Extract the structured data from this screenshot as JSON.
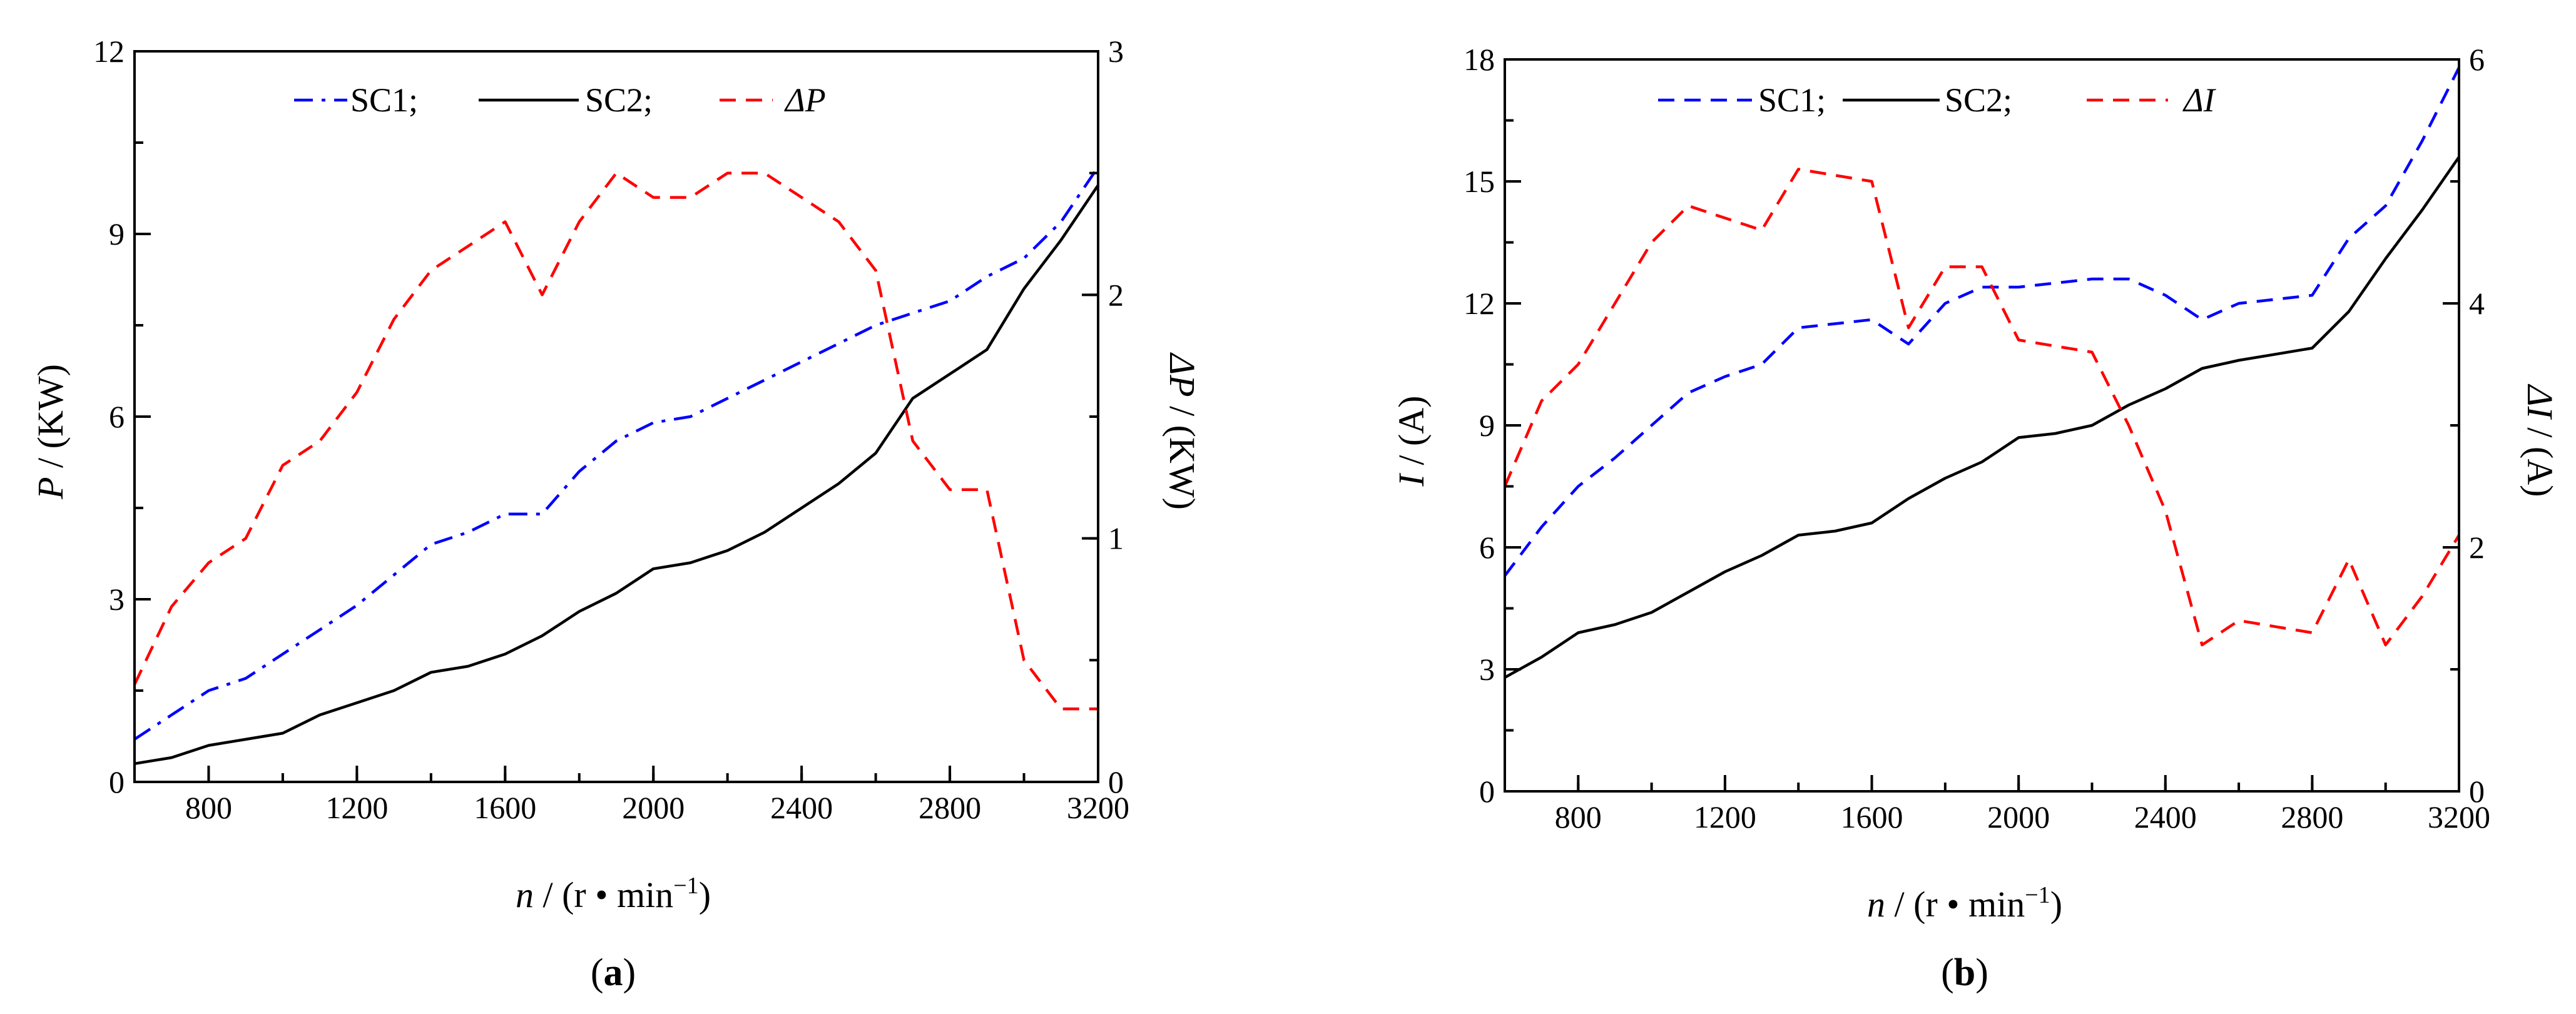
{
  "chart_data": [
    {
      "type": "line",
      "panel_label": "a",
      "x": [
        600,
        700,
        800,
        900,
        1000,
        1100,
        1200,
        1300,
        1400,
        1500,
        1600,
        1700,
        1800,
        1900,
        2000,
        2100,
        2200,
        2300,
        2400,
        2500,
        2600,
        2700,
        2800,
        2900,
        3000,
        3100,
        3200
      ],
      "xlim": [
        600,
        3200
      ],
      "xticks": [
        "800",
        "1200",
        "1600",
        "2000",
        "2400",
        "2800",
        "3200"
      ],
      "xlabel_var": "n",
      "xlabel_unit": " / (r • min",
      "xlabel_exp": "−1",
      "xlabel_close": ")",
      "ylim": [
        0,
        12
      ],
      "yticks": [
        "0",
        "3",
        "6",
        "9",
        "12"
      ],
      "ylabel_var": "P",
      "ylabel_unit": " / (KW)",
      "y2lim": [
        0,
        3
      ],
      "y2ticks": [
        "0",
        "1",
        "2",
        "3"
      ],
      "y2label_var": "ΔP",
      "y2label_unit": " / (KW)",
      "legend_position": "top-center",
      "series": [
        {
          "name": "SC1;",
          "axis": "left",
          "color": "#0000ff",
          "dash": "dashdot",
          "values": [
            0.7,
            1.1,
            1.5,
            1.7,
            2.1,
            2.5,
            2.9,
            3.4,
            3.9,
            4.1,
            4.4,
            4.4,
            5.1,
            5.6,
            5.9,
            6.0,
            6.3,
            6.6,
            6.9,
            7.2,
            7.5,
            7.7,
            7.9,
            8.3,
            8.6,
            9.2,
            10.1
          ]
        },
        {
          "name": "SC2;",
          "axis": "left",
          "color": "#000000",
          "dash": "solid",
          "values": [
            0.3,
            0.4,
            0.6,
            0.7,
            0.8,
            1.1,
            1.3,
            1.5,
            1.8,
            1.9,
            2.1,
            2.4,
            2.8,
            3.1,
            3.5,
            3.6,
            3.8,
            4.1,
            4.5,
            4.9,
            5.4,
            6.3,
            6.7,
            7.1,
            8.1,
            8.9,
            9.8
          ]
        },
        {
          "name": "ΔP",
          "axis": "right",
          "color": "#ff0000",
          "dash": "dashed",
          "values": [
            0.4,
            0.72,
            0.9,
            1.0,
            1.3,
            1.4,
            1.6,
            1.9,
            2.1,
            2.2,
            2.3,
            2.0,
            2.3,
            2.5,
            2.4,
            2.4,
            2.5,
            2.5,
            2.4,
            2.3,
            2.1,
            1.4,
            1.2,
            1.2,
            0.5,
            0.3,
            0.3
          ]
        }
      ]
    },
    {
      "type": "line",
      "panel_label": "b",
      "x": [
        600,
        700,
        800,
        900,
        1000,
        1100,
        1200,
        1300,
        1400,
        1500,
        1600,
        1700,
        1800,
        1900,
        2000,
        2100,
        2200,
        2300,
        2400,
        2500,
        2600,
        2700,
        2800,
        2900,
        3000,
        3100,
        3200
      ],
      "xlim": [
        600,
        3200
      ],
      "xticks": [
        "800",
        "1200",
        "1600",
        "2000",
        "2400",
        "2800",
        "3200"
      ],
      "xlabel_var": "n",
      "xlabel_unit": " / (r • min",
      "xlabel_exp": "−1",
      "xlabel_close": ")",
      "ylim": [
        0,
        18
      ],
      "yticks": [
        "0",
        "3",
        "6",
        "9",
        "12",
        "15",
        "18"
      ],
      "ylabel_var": "I",
      "ylabel_unit": " / (A)",
      "y2lim": [
        0,
        6
      ],
      "y2ticks": [
        "0",
        "2",
        "4",
        "6"
      ],
      "y2label_var": "ΔI",
      "y2label_unit": " / (A)",
      "legend_position": "top-center",
      "series": [
        {
          "name": "SC1;",
          "axis": "left",
          "color": "#0000ff",
          "dash": "dashed",
          "values": [
            5.3,
            6.5,
            7.5,
            8.2,
            9.0,
            9.8,
            10.2,
            10.5,
            11.4,
            11.5,
            11.6,
            11.0,
            12.0,
            12.4,
            12.4,
            12.5,
            12.6,
            12.6,
            12.2,
            11.6,
            12.0,
            12.1,
            12.2,
            13.6,
            14.4,
            16.0,
            17.8
          ]
        },
        {
          "name": "SC2;",
          "axis": "left",
          "color": "#000000",
          "dash": "solid",
          "values": [
            2.8,
            3.3,
            3.9,
            4.1,
            4.4,
            4.9,
            5.4,
            5.8,
            6.3,
            6.4,
            6.6,
            7.2,
            7.7,
            8.1,
            8.7,
            8.8,
            9.0,
            9.5,
            9.9,
            10.4,
            10.6,
            10.75,
            10.9,
            11.8,
            13.1,
            14.3,
            15.6
          ]
        },
        {
          "name": "ΔI",
          "axis": "right",
          "color": "#ff0000",
          "dash": "dashed",
          "values": [
            2.5,
            3.2,
            3.5,
            4.0,
            4.5,
            4.8,
            4.7,
            4.6,
            5.1,
            5.05,
            5.0,
            3.8,
            4.3,
            4.3,
            3.7,
            3.65,
            3.6,
            3.0,
            2.3,
            1.2,
            1.4,
            1.35,
            1.3,
            1.9,
            1.2,
            1.6,
            2.1
          ]
        }
      ]
    }
  ]
}
